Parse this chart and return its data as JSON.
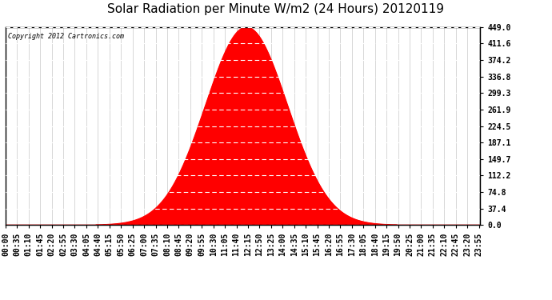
{
  "title": "Solar Radiation per Minute W/m2 (24 Hours) 20120119",
  "copyright_text": "Copyright 2012 Cartronics.com",
  "yticks": [
    0.0,
    37.4,
    74.8,
    112.2,
    149.7,
    187.1,
    224.5,
    261.9,
    299.3,
    336.8,
    374.2,
    411.6,
    449.0
  ],
  "ymax": 449.0,
  "ymin": 0.0,
  "peak_value": 449.0,
  "peak_minute": 730,
  "sunrise_minute": 470,
  "sunset_minute": 990,
  "sigma_divisor": 2.1,
  "fill_color": "#ff0000",
  "line_color": "#ff0000",
  "dashed_line_color": "#ff0000",
  "grid_color_h": "#ffffff",
  "grid_color_v": "#c8c8c8",
  "background_color": "#ffffff",
  "title_fontsize": 11,
  "tick_fontsize": 7,
  "num_minutes": 1440,
  "xtick_step": 35
}
